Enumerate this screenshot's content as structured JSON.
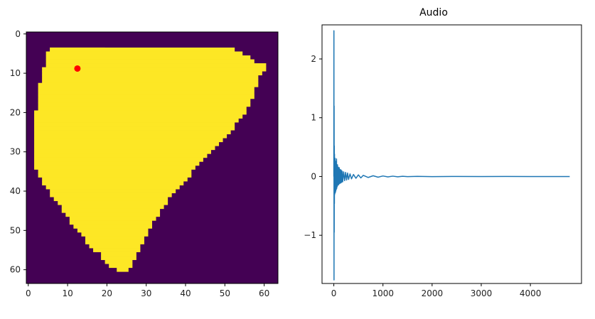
{
  "chart_data": [
    {
      "type": "heatmap",
      "title": "",
      "xlabel": "",
      "ylabel": "",
      "xlim": [
        -0.5,
        63.5
      ],
      "ylim": [
        63.5,
        -0.5
      ],
      "x_ticks": [
        "0",
        "10",
        "20",
        "30",
        "40",
        "50",
        "60"
      ],
      "y_ticks": [
        "0",
        "10",
        "20",
        "30",
        "40",
        "50",
        "60"
      ],
      "colors": {
        "background": "#440154",
        "mask": "#fde725",
        "marker": "#ff0000"
      },
      "mask_region": {
        "description_rows": "row -> [first_col, last_col] of filled pixels",
        "rows": [
          [
            4,
            6,
            19
          ],
          [
            4,
            6,
            52
          ],
          [
            5,
            5,
            54
          ],
          [
            6,
            5,
            56
          ],
          [
            7,
            5,
            57
          ],
          [
            8,
            5,
            60
          ],
          [
            9,
            4,
            60
          ],
          [
            10,
            4,
            59
          ],
          [
            11,
            4,
            58
          ],
          [
            12,
            4,
            58
          ],
          [
            13,
            3,
            58
          ],
          [
            14,
            3,
            57
          ],
          [
            15,
            3,
            57
          ],
          [
            16,
            3,
            57
          ],
          [
            17,
            3,
            56
          ],
          [
            18,
            3,
            56
          ],
          [
            19,
            3,
            55
          ],
          [
            20,
            2,
            55
          ],
          [
            21,
            2,
            54
          ],
          [
            22,
            2,
            53
          ],
          [
            23,
            2,
            52
          ],
          [
            24,
            2,
            52
          ],
          [
            25,
            2,
            51
          ],
          [
            26,
            2,
            50
          ],
          [
            27,
            2,
            49
          ],
          [
            28,
            2,
            48
          ],
          [
            29,
            2,
            47
          ],
          [
            30,
            2,
            46
          ],
          [
            31,
            2,
            45
          ],
          [
            32,
            2,
            44
          ],
          [
            33,
            2,
            43
          ],
          [
            34,
            2,
            42
          ],
          [
            35,
            3,
            41
          ],
          [
            36,
            3,
            41
          ],
          [
            37,
            4,
            40
          ],
          [
            38,
            4,
            39
          ],
          [
            39,
            5,
            38
          ],
          [
            40,
            6,
            37
          ],
          [
            41,
            6,
            36
          ],
          [
            42,
            7,
            35
          ],
          [
            43,
            8,
            35
          ],
          [
            44,
            9,
            34
          ],
          [
            45,
            9,
            33
          ],
          [
            46,
            10,
            33
          ],
          [
            47,
            11,
            32
          ],
          [
            48,
            11,
            31
          ],
          [
            49,
            12,
            31
          ],
          [
            50,
            13,
            30
          ],
          [
            51,
            14,
            30
          ],
          [
            52,
            15,
            29
          ],
          [
            53,
            15,
            29
          ],
          [
            54,
            16,
            28
          ],
          [
            55,
            17,
            28
          ],
          [
            56,
            19,
            27
          ],
          [
            57,
            19,
            27
          ],
          [
            58,
            20,
            26
          ],
          [
            59,
            21,
            26
          ],
          [
            60,
            23,
            25
          ]
        ]
      },
      "marker": {
        "x": 12.5,
        "y": 8.8
      }
    },
    {
      "type": "line",
      "title": "Audio",
      "xlabel": "",
      "ylabel": "",
      "xlim": [
        -240,
        5040
      ],
      "ylim": [
        -1.82,
        2.58
      ],
      "x_ticks": [
        "0",
        "1000",
        "2000",
        "3000",
        "4000"
      ],
      "y_ticks": [
        "−1",
        "0",
        "1",
        "2"
      ],
      "x_tick_values": [
        0,
        1000,
        2000,
        3000,
        4000
      ],
      "y_tick_values": [
        -1,
        0,
        1,
        2
      ],
      "series": [
        {
          "color": "#1f77b4",
          "x": [
            0,
            2,
            4,
            6,
            8,
            10,
            12,
            14,
            16,
            18,
            20,
            25,
            30,
            35,
            40,
            45,
            50,
            55,
            60,
            65,
            70,
            75,
            80,
            90,
            100,
            110,
            120,
            130,
            140,
            150,
            160,
            170,
            180,
            200,
            220,
            240,
            260,
            280,
            300,
            330,
            360,
            400,
            450,
            500,
            550,
            600,
            700,
            800,
            900,
            1000,
            1100,
            1200,
            1300,
            1400,
            1500,
            1700,
            2000,
            2500,
            3000,
            3500,
            4000,
            4500,
            4800
          ],
          "y": [
            0,
            2.48,
            -1.76,
            1.2,
            -0.95,
            0.52,
            -0.46,
            0.38,
            -0.31,
            0.27,
            -0.22,
            0.31,
            -0.28,
            0.26,
            -0.25,
            0.23,
            -0.22,
            0.3,
            -0.2,
            0.18,
            -0.17,
            0.2,
            -0.15,
            0.16,
            -0.14,
            0.15,
            -0.12,
            0.12,
            -0.11,
            0.11,
            -0.1,
            0.09,
            -0.09,
            0.08,
            -0.07,
            0.07,
            -0.06,
            0.06,
            -0.05,
            0.045,
            -0.04,
            0.035,
            -0.03,
            0.028,
            -0.024,
            0.02,
            -0.016,
            0.013,
            -0.011,
            0.009,
            -0.007,
            0.006,
            -0.005,
            0.004,
            -0.003,
            0.002,
            -0.002,
            0.001,
            -0.001,
            0.0005,
            0,
            0,
            0
          ]
        }
      ]
    }
  ]
}
